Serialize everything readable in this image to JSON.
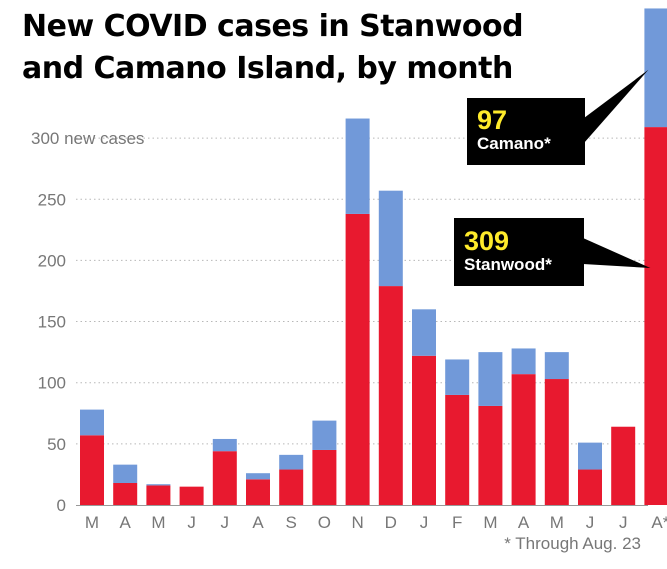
{
  "title_lines": [
    "New COVID cases in Stanwood",
    "and Camano Island, by month"
  ],
  "footnote": "* Through Aug. 23",
  "colors": {
    "stanwood": "#e8192f",
    "camano": "#7199d9",
    "callout_bg": "#000000",
    "callout_number": "#ffeb2b"
  },
  "callouts": {
    "camano": {
      "number": "97",
      "label": "Camano*"
    },
    "stanwood": {
      "number": "309",
      "label": "Stanwood*"
    }
  },
  "chart_data": {
    "type": "bar",
    "stacked": true,
    "categories": [
      "M",
      "A",
      "M",
      "J",
      "J",
      "A",
      "S",
      "O",
      "N",
      "D",
      "J",
      "F",
      "M",
      "A",
      "M",
      "J",
      "J",
      "A*"
    ],
    "series": [
      {
        "name": "Stanwood",
        "values": [
          57,
          18,
          16,
          15,
          44,
          21,
          29,
          45,
          238,
          179,
          122,
          90,
          81,
          107,
          103,
          29,
          64,
          309
        ]
      },
      {
        "name": "Camano",
        "values": [
          21,
          15,
          1,
          0,
          10,
          5,
          12,
          24,
          78,
          78,
          38,
          29,
          44,
          21,
          22,
          22,
          0,
          97
        ]
      }
    ],
    "yticks": [
      0,
      50,
      100,
      150,
      200,
      250,
      300
    ],
    "ytick_labels": [
      "0",
      "50",
      "100",
      "150",
      "200",
      "250",
      "300 new cases"
    ],
    "ylim": [
      0,
      400
    ],
    "grid": true
  }
}
